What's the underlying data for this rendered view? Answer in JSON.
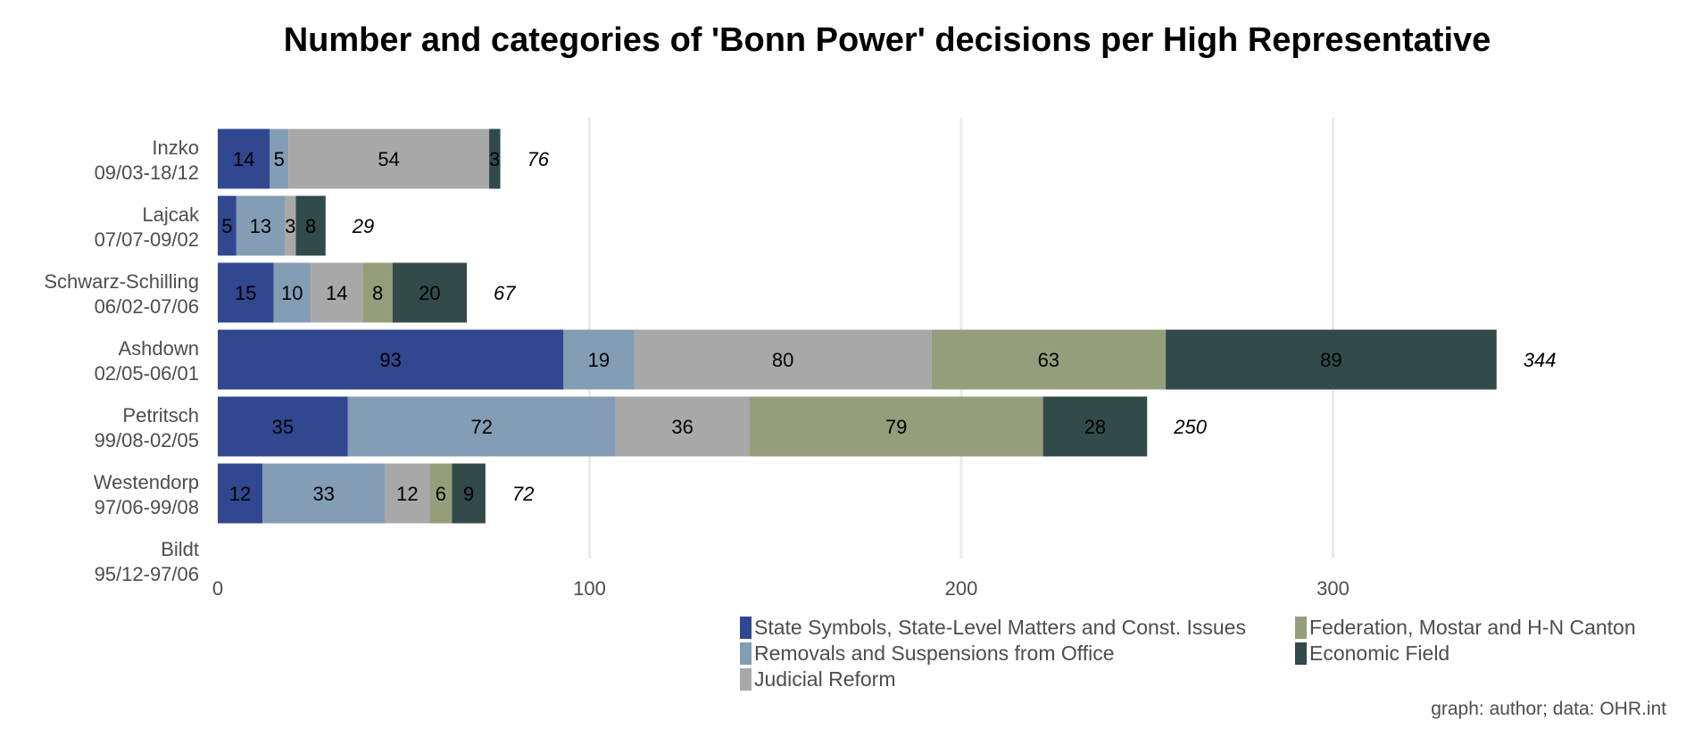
{
  "chart_data": {
    "type": "bar",
    "orientation": "horizontal",
    "stacked": true,
    "title": "Number and categories of 'Bonn Power' decisions per High Representative",
    "xlabel": "",
    "ylabel": "",
    "caption": "graph: author; data: OHR.int",
    "xlim": [
      0,
      394
    ],
    "x_ticks": [
      0,
      100,
      200,
      300
    ],
    "grid": "vertical-major",
    "legend_placement": "bottom-right",
    "categories": [
      {
        "name": "Inzko",
        "period": "09/03-18/12"
      },
      {
        "name": "Lajcak",
        "period": "07/07-09/02"
      },
      {
        "name": "Schwarz-Schilling",
        "period": "06/02-07/06"
      },
      {
        "name": "Ashdown",
        "period": "02/05-06/01"
      },
      {
        "name": "Petritsch",
        "period": "99/08-02/05"
      },
      {
        "name": "Westendorp",
        "period": "97/06-99/08"
      },
      {
        "name": "Bildt",
        "period": "95/12-97/06"
      }
    ],
    "series": [
      {
        "name": "State Symbols, State-Level Matters and Const. Issues",
        "color": "#31478f",
        "values": [
          14,
          5,
          15,
          93,
          35,
          12,
          0
        ]
      },
      {
        "name": "Removals and Suspensions from Office",
        "color": "#839db5",
        "values": [
          5,
          13,
          10,
          19,
          72,
          33,
          0
        ]
      },
      {
        "name": "Judicial Reform",
        "color": "#a8a8a8",
        "values": [
          54,
          3,
          14,
          80,
          36,
          12,
          0
        ]
      },
      {
        "name": "Federation, Mostar and H-N Canton",
        "color": "#959e7a",
        "values": [
          0,
          0,
          8,
          63,
          79,
          6,
          0
        ]
      },
      {
        "name": "Economic Field",
        "color": "#314a4a",
        "values": [
          3,
          8,
          20,
          89,
          28,
          9,
          0
        ]
      }
    ],
    "totals": [
      76,
      29,
      67,
      344,
      250,
      72,
      null
    ],
    "legend_order": [
      0,
      3,
      1,
      4,
      2
    ]
  }
}
